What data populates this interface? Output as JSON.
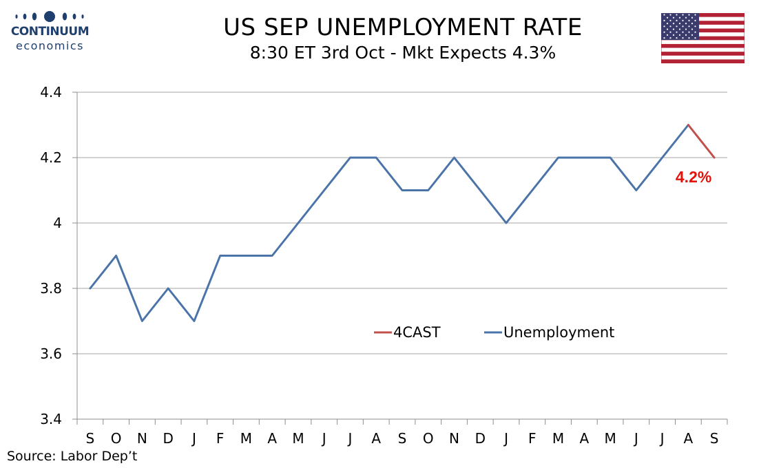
{
  "header": {
    "logo_line1": "CONTINUUM",
    "logo_line2": "economics",
    "title": "US SEP UNEMPLOYMENT RATE",
    "subtitle": "8:30 ET 3rd Oct - Mkt Expects 4.3%",
    "flag": "us-flag-icon"
  },
  "footer": {
    "source": "Source: Labor Dep’t"
  },
  "colors": {
    "unemployment": "#4a73a8",
    "forecast": "#c0504d",
    "annotation": "#e3120b",
    "grid": "#a6a6a6",
    "logo": "#1f3f6e"
  },
  "chart_data": {
    "type": "line",
    "title": "US SEP UNEMPLOYMENT RATE",
    "subtitle": "8:30 ET 3rd Oct - Mkt Expects 4.3%",
    "categories": [
      "S",
      "O",
      "N",
      "D",
      "J",
      "F",
      "M",
      "A",
      "M",
      "J",
      "J",
      "A",
      "S",
      "O",
      "N",
      "D",
      "J",
      "F",
      "M",
      "A",
      "M",
      "J",
      "J",
      "A",
      "S"
    ],
    "ylim": [
      3.4,
      4.4
    ],
    "yticks": [
      "3.4",
      "3.6",
      "3.8",
      "4",
      "4.2",
      "4.4"
    ],
    "grid": true,
    "legend_position": "center",
    "series": [
      {
        "name": "4CAST",
        "color": "#c0504d",
        "values": [
          null,
          null,
          null,
          null,
          null,
          null,
          null,
          null,
          null,
          null,
          null,
          null,
          null,
          null,
          null,
          null,
          null,
          null,
          null,
          null,
          null,
          null,
          null,
          4.3,
          4.2
        ]
      },
      {
        "name": "Unemployment",
        "color": "#4a73a8",
        "values": [
          3.8,
          3.9,
          3.7,
          3.8,
          3.7,
          3.9,
          3.9,
          3.9,
          4.0,
          4.1,
          4.2,
          4.2,
          4.1,
          4.1,
          4.2,
          4.1,
          4.0,
          4.1,
          4.2,
          4.2,
          4.2,
          4.1,
          4.2,
          4.3,
          null
        ]
      }
    ],
    "annotation": {
      "text": "4.2%",
      "x_index": 24,
      "value": 4.2
    }
  }
}
